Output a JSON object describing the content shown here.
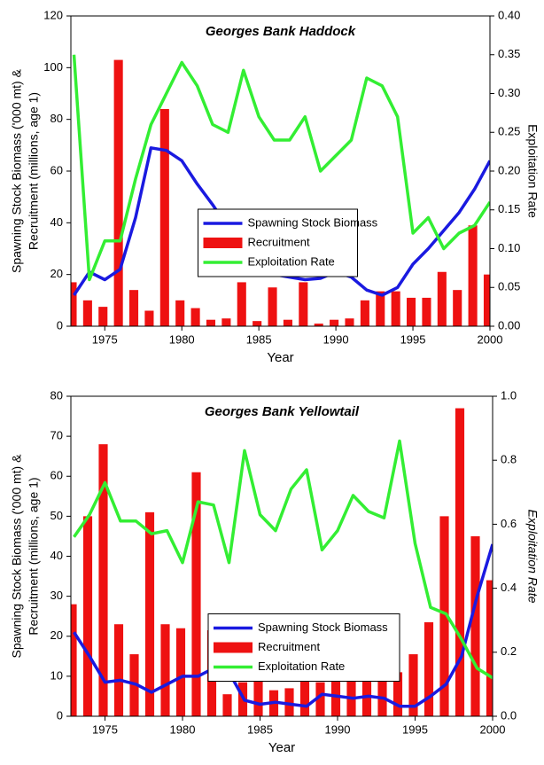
{
  "chart_data": [
    {
      "type": "combo",
      "title": "Georges Bank Haddock",
      "xlabel": "Year",
      "ylabel": [
        "Spawning Stock Biomass ('000 mt) &",
        "Recruitment (millions, age 1)"
      ],
      "y2label": "Exploitation Rate",
      "x": [
        1973,
        1974,
        1975,
        1976,
        1977,
        1978,
        1979,
        1980,
        1981,
        1982,
        1983,
        1984,
        1985,
        1986,
        1987,
        1988,
        1989,
        1990,
        1991,
        1992,
        1993,
        1994,
        1995,
        1996,
        1997,
        1998,
        1999,
        2000
      ],
      "xlim": [
        1972.8,
        2000
      ],
      "xticks": [
        1975,
        1980,
        1985,
        1990,
        1995,
        2000
      ],
      "ylim": [
        0,
        120
      ],
      "yticks": [
        0,
        20,
        40,
        60,
        80,
        100,
        120
      ],
      "y2lim": [
        0,
        0.4
      ],
      "y2ticks": [
        {
          "value": 0,
          "label": "0.00"
        },
        {
          "value": 0.05,
          "label": "0.05"
        },
        {
          "value": 0.1,
          "label": "0.10"
        },
        {
          "value": 0.15,
          "label": "0.15"
        },
        {
          "value": 0.2,
          "label": "0.20"
        },
        {
          "value": 0.25,
          "label": "0.25"
        },
        {
          "value": 0.3,
          "label": "0.30"
        },
        {
          "value": 0.35,
          "label": "0.35"
        },
        {
          "value": 0.4,
          "label": "0.40"
        }
      ],
      "legend": "center",
      "series": [
        {
          "name": "Spawning Stock Biomass",
          "mark": "line",
          "color": "#1a1ae0",
          "values": [
            12,
            21,
            18,
            22,
            42,
            69,
            68,
            64,
            55,
            47,
            38,
            27,
            20,
            20,
            19,
            18,
            18.5,
            21,
            19,
            14,
            12,
            15,
            24,
            30,
            37,
            44,
            53,
            64
          ]
        },
        {
          "name": "Recruitment",
          "mark": "bar",
          "color": "#ee1111",
          "values": [
            17,
            10,
            7.5,
            103,
            14,
            6,
            84,
            10,
            7,
            2.5,
            3,
            17,
            2,
            15,
            2.5,
            17,
            1,
            2.5,
            3,
            10,
            13.5,
            13.5,
            11,
            11,
            21,
            14,
            39,
            20
          ]
        },
        {
          "name": "Exploitation Rate",
          "mark": "line",
          "color": "#33ee33",
          "axis": "y2",
          "values": [
            0.35,
            0.06,
            0.11,
            0.11,
            0.19,
            0.26,
            0.3,
            0.34,
            0.31,
            0.26,
            0.25,
            0.33,
            0.27,
            0.24,
            0.24,
            0.27,
            0.2,
            0.22,
            0.24,
            0.32,
            0.31,
            0.27,
            0.12,
            0.14,
            0.1,
            0.12,
            0.13,
            0.16
          ]
        }
      ]
    },
    {
      "type": "combo",
      "title": "Georges Bank Yellowtail",
      "xlabel": "Year",
      "ylabel": [
        "Spawning Stock Biomass ('000 mt) &",
        "Recruitment (millions, age 1)"
      ],
      "y2label": "Exploitation Rate",
      "x": [
        1973,
        1974,
        1975,
        1976,
        1977,
        1978,
        1979,
        1980,
        1981,
        1982,
        1983,
        1984,
        1985,
        1986,
        1987,
        1988,
        1989,
        1990,
        1991,
        1992,
        1993,
        1994,
        1995,
        1996,
        1997,
        1998,
        1999,
        2000
      ],
      "xlim": [
        1972.8,
        2000
      ],
      "xticks": [
        1975,
        1980,
        1985,
        1990,
        1995,
        2000
      ],
      "ylim": [
        0,
        80
      ],
      "yticks": [
        0,
        10,
        20,
        30,
        40,
        50,
        60,
        70,
        80
      ],
      "y2lim": [
        0,
        1
      ],
      "y2ticks": [
        {
          "value": 0,
          "label": "0.0"
        },
        {
          "value": 0.2,
          "label": "0.2"
        },
        {
          "value": 0.4,
          "label": "0.4"
        },
        {
          "value": 0.6,
          "label": "0.6"
        },
        {
          "value": 0.8,
          "label": "0.8"
        },
        {
          "value": 1,
          "label": "1.0"
        }
      ],
      "legend": "center",
      "series": [
        {
          "name": "Spawning Stock Biomass",
          "mark": "line",
          "color": "#1a1ae0",
          "values": [
            21,
            15,
            8.5,
            9,
            8,
            6,
            8,
            10,
            10,
            12,
            11,
            4,
            3,
            3.5,
            3,
            2.5,
            5.5,
            5,
            4.5,
            5,
            4.5,
            2.5,
            2.5,
            5,
            8,
            15,
            30,
            43
          ]
        },
        {
          "name": "Recruitment",
          "mark": "bar",
          "color": "#ee1111",
          "values": [
            28,
            50,
            68,
            23,
            15.5,
            51,
            23,
            22,
            61,
            21.5,
            5.5,
            8.5,
            14.5,
            6.5,
            7,
            19,
            8.5,
            12,
            22.5,
            17,
            12,
            11,
            15.5,
            23.5,
            50,
            77,
            45,
            34
          ]
        },
        {
          "name": "Exploitation Rate",
          "mark": "line",
          "color": "#33ee33",
          "axis": "y2",
          "values": [
            0.56,
            0.63,
            0.73,
            0.61,
            0.61,
            0.57,
            0.58,
            0.48,
            0.67,
            0.66,
            0.48,
            0.83,
            0.63,
            0.58,
            0.71,
            0.77,
            0.52,
            0.58,
            0.69,
            0.64,
            0.62,
            0.86,
            0.54,
            0.34,
            0.32,
            0.24,
            0.15,
            0.12
          ]
        }
      ]
    }
  ]
}
